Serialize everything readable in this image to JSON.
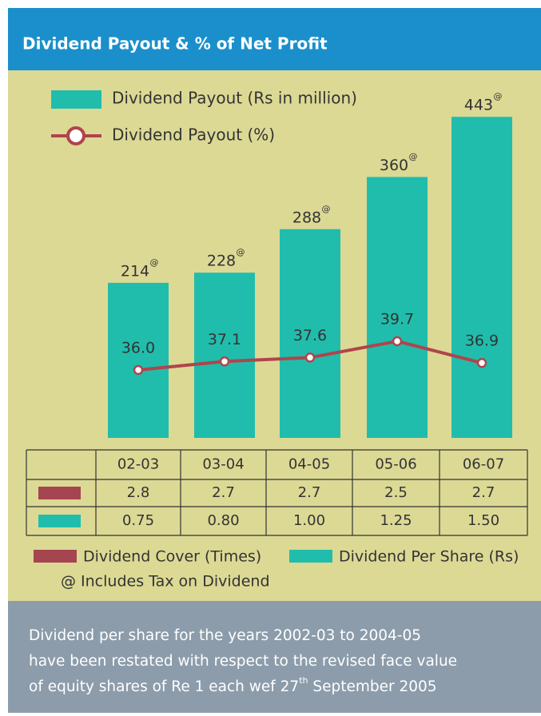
{
  "chart_data": {
    "type": "bar-line",
    "title": "Dividend Payout & % of Net Profit",
    "categories": [
      "02-03",
      "03-04",
      "04-05",
      "05-06",
      "06-07"
    ],
    "series": [
      {
        "name": "Dividend Payout (Rs in million)",
        "color": "#20bdac",
        "values": [
          214,
          228,
          288,
          360,
          443
        ]
      },
      {
        "name": "Dividend Payout (%)",
        "color": "#b0444c",
        "values": [
          36.0,
          37.1,
          37.6,
          39.7,
          36.9
        ],
        "value_labels": [
          "36.0",
          "37.1",
          "37.6",
          "39.7",
          "36.9"
        ]
      }
    ],
    "marker": "@",
    "table": {
      "rows": [
        {
          "name": "Dividend Cover (Times)",
          "color": "#a5454f",
          "values": [
            "2.8",
            "2.7",
            "2.7",
            "2.5",
            "2.7"
          ]
        },
        {
          "name": "Dividend Per Share (Rs)",
          "color": "#20bdac",
          "values": [
            "0.75",
            "0.80",
            "1.00",
            "1.25",
            "1.50"
          ]
        }
      ]
    },
    "note": "@ Includes Tax on Dividend",
    "footer": {
      "lines": [
        "Dividend per share for the years 2002-03 to 2004-05",
        "have been restated with respect to the revised face value"
      ],
      "last": {
        "text": "of equity shares of Re 1 each wef 27",
        "sup": "th",
        "rest": " September 2005"
      }
    }
  }
}
